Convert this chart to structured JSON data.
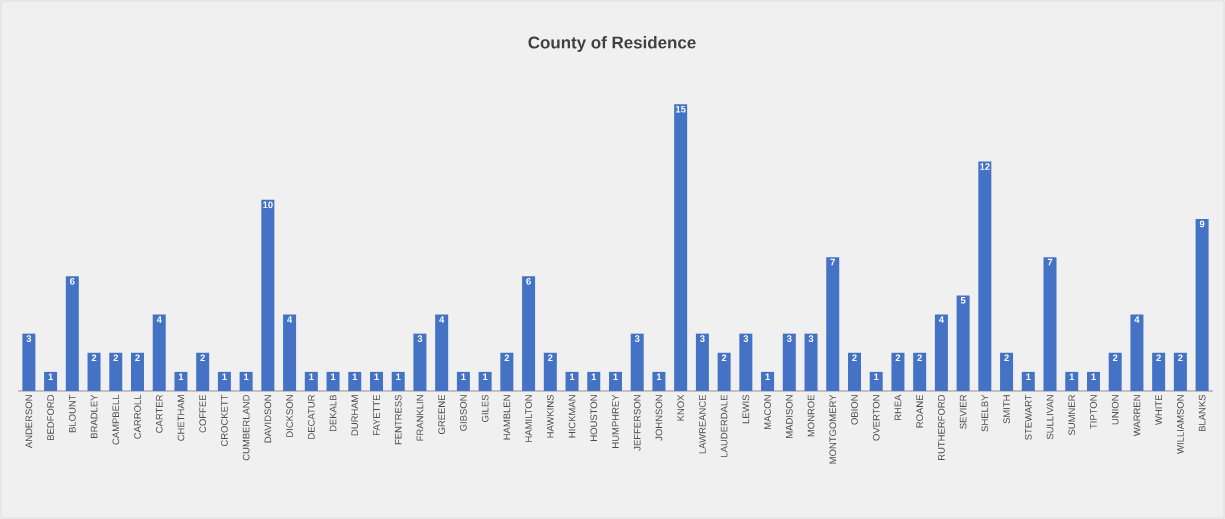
{
  "chart_data": {
    "type": "bar",
    "title": "County of Residence",
    "categories": [
      "ANDERSON",
      "BEDFORD",
      "BLOUNT",
      "BRADLEY",
      "CAMPBELL",
      "CARROLL",
      "CARTER",
      "CHETHAM",
      "COFFEE",
      "CROCKETT",
      "CUMBERLAND",
      "DAVIDSON",
      "DICKSON",
      "DECATUR",
      "DEKALB",
      "DURHAM",
      "FAYETTE",
      "FENTRESS",
      "FRANKLIN",
      "GREENE",
      "GIBSON",
      "GILES",
      "HAMBLEN",
      "HAMILTON",
      "HAWKINS",
      "HICKMAN",
      "HOUSTON",
      "HUMPHREY",
      "JEFFERSON",
      "JOHNSON",
      "KNOX",
      "LAWREANCE",
      "LAUDERDALE",
      "LEWIS",
      "MACON",
      "MADISON",
      "MONROE",
      "MONTGOMERY",
      "OBION",
      "OVERTON",
      "RHEA",
      "ROANE",
      "RUTHERFORD",
      "SEVIER",
      "SHELBY",
      "SMITH",
      "STEWART",
      "SULLIVAN",
      "SUMNER",
      "TIPTON",
      "UNION",
      "WARREN",
      "WHITE",
      "WILLIAMSON",
      "BLANKS"
    ],
    "values": [
      3,
      1,
      6,
      2,
      2,
      2,
      4,
      1,
      2,
      1,
      1,
      10,
      4,
      1,
      1,
      1,
      1,
      1,
      3,
      4,
      1,
      1,
      2,
      6,
      2,
      1,
      1,
      1,
      3,
      1,
      15,
      3,
      2,
      3,
      1,
      3,
      3,
      7,
      2,
      1,
      2,
      2,
      4,
      5,
      12,
      2,
      1,
      7,
      1,
      1,
      2,
      4,
      2,
      2,
      9
    ],
    "color": "#4472c4",
    "data_labels": true,
    "tick_labels": "x"
  }
}
